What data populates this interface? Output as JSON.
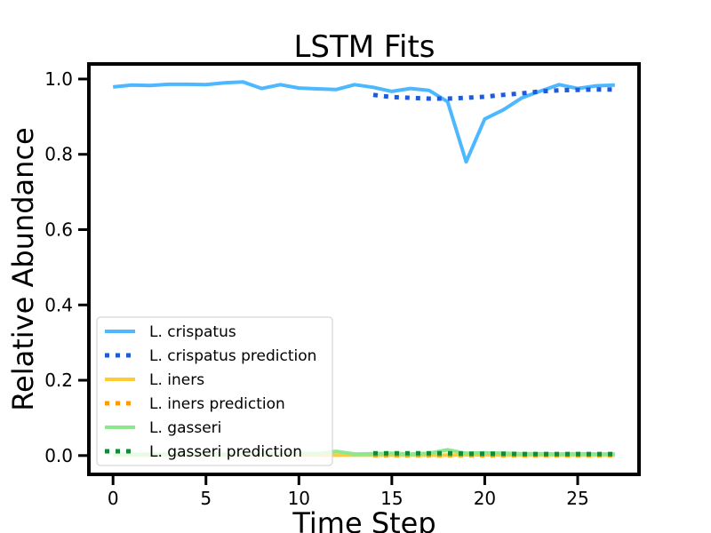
{
  "chart_data": {
    "type": "line",
    "title": "LSTM Fits",
    "xlabel": "Time Step",
    "ylabel": "Relative Abundance",
    "xlim": [
      -1.3,
      28.3
    ],
    "ylim": [
      -0.05,
      1.04
    ],
    "xticks": [
      0,
      5,
      10,
      15,
      20,
      25
    ],
    "yticks": [
      0.0,
      0.2,
      0.4,
      0.6,
      0.8,
      1.0
    ],
    "xtick_labels": [
      "0",
      "5",
      "10",
      "15",
      "20",
      "25"
    ],
    "ytick_labels": [
      "0.0",
      "0.2",
      "0.4",
      "0.6",
      "0.8",
      "1.0"
    ],
    "grid": false,
    "legend_position": "lower-left",
    "series": [
      {
        "name": "L. crispatus",
        "color": "#4db8ff",
        "style": "solid",
        "x": [
          0,
          1,
          2,
          3,
          4,
          5,
          6,
          7,
          8,
          9,
          10,
          11,
          12,
          13,
          14,
          15,
          16,
          17,
          18,
          19,
          20,
          21,
          22,
          23,
          24,
          25,
          26,
          27
        ],
        "y": [
          0.979,
          0.984,
          0.983,
          0.986,
          0.986,
          0.985,
          0.99,
          0.992,
          0.975,
          0.985,
          0.976,
          0.974,
          0.972,
          0.985,
          0.978,
          0.967,
          0.975,
          0.97,
          0.94,
          0.78,
          0.894,
          0.918,
          0.95,
          0.968,
          0.985,
          0.975,
          0.982,
          0.984
        ]
      },
      {
        "name": "L. crispatus prediction",
        "color": "#1f5bd6",
        "style": "dotted",
        "x": [
          14,
          15,
          16,
          17,
          18,
          19,
          20,
          21,
          22,
          23,
          24,
          25,
          26,
          27
        ],
        "y": [
          0.958,
          0.952,
          0.95,
          0.948,
          0.948,
          0.95,
          0.953,
          0.958,
          0.962,
          0.967,
          0.97,
          0.971,
          0.972,
          0.972
        ]
      },
      {
        "name": "L. iners",
        "color": "#ffcc33",
        "style": "solid",
        "x": [
          0,
          1,
          2,
          3,
          4,
          5,
          6,
          7,
          8,
          9,
          10,
          11,
          12,
          13,
          14,
          15,
          16,
          17,
          18,
          19,
          20,
          21,
          22,
          23,
          24,
          25,
          26,
          27
        ],
        "y": [
          0.001,
          0.001,
          0.001,
          0.001,
          0.001,
          0.001,
          0.001,
          0.001,
          0.001,
          0.001,
          0.001,
          0.001,
          0.001,
          0.001,
          0.001,
          0.001,
          0.001,
          0.001,
          0.001,
          0.002,
          0.002,
          0.001,
          0.001,
          0.001,
          0.001,
          0.001,
          0.001,
          0.001
        ]
      },
      {
        "name": "L. iners prediction",
        "color": "#ff9900",
        "style": "dotted",
        "x": [
          14,
          15,
          16,
          17,
          18,
          19,
          20,
          21,
          22,
          23,
          24,
          25,
          26,
          27
        ],
        "y": [
          0.001,
          0.001,
          0.001,
          0.001,
          0.001,
          0.001,
          0.001,
          0.001,
          0.001,
          0.001,
          0.001,
          0.001,
          0.001,
          0.001
        ]
      },
      {
        "name": "L. gasseri",
        "color": "#8de88d",
        "style": "solid",
        "x": [
          0,
          1,
          2,
          3,
          4,
          5,
          6,
          7,
          8,
          9,
          10,
          11,
          12,
          13,
          14,
          15,
          16,
          17,
          18,
          19,
          20,
          21,
          22,
          23,
          24,
          25,
          26,
          27
        ],
        "y": [
          0.004,
          0.003,
          0.004,
          0.003,
          0.004,
          0.005,
          0.003,
          0.004,
          0.006,
          0.004,
          0.006,
          0.005,
          0.011,
          0.004,
          0.005,
          0.006,
          0.004,
          0.006,
          0.015,
          0.006,
          0.007,
          0.006,
          0.005,
          0.005,
          0.004,
          0.005,
          0.004,
          0.004
        ]
      },
      {
        "name": "L. gasseri prediction",
        "color": "#138a36",
        "style": "dotted",
        "x": [
          14,
          15,
          16,
          17,
          18,
          19,
          20,
          21,
          22,
          23,
          24,
          25,
          26,
          27
        ],
        "y": [
          0.006,
          0.006,
          0.006,
          0.006,
          0.006,
          0.005,
          0.005,
          0.005,
          0.004,
          0.004,
          0.004,
          0.004,
          0.004,
          0.004
        ]
      }
    ]
  }
}
